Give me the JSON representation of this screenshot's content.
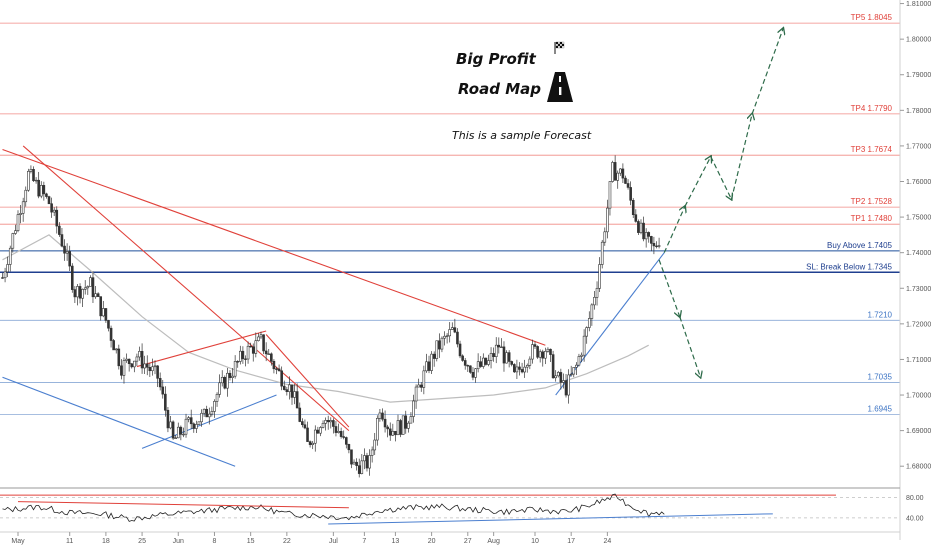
{
  "header": {
    "title_line1": "Big Profit",
    "title_line2": "Road Map",
    "subtitle": "This is a sample Forecast",
    "flag_icon": "checkered-flag-icon",
    "road_icon": "road-icon"
  },
  "colors": {
    "bull": "#26a69a",
    "bear": "#ef5350",
    "candle": "#333333",
    "tp_line": "#f08a84",
    "buy_line": "#1f4f9a",
    "sl_line": "#1f3f8f",
    "support_blue": "#8aa9d6",
    "ma": "#bdbdbd",
    "trend_red": "#e0413a",
    "trend_blue": "#4b7fcf",
    "arrow_green": "#2e6b4a",
    "axis_text": "#555555"
  },
  "chart_data": {
    "type": "candlestick",
    "title": "",
    "ylim": [
      1.675,
      1.811
    ],
    "y_ticks": [
      "1.81000",
      "1.80000",
      "1.79000",
      "1.78000",
      "1.77000",
      "1.76000",
      "1.75000",
      "1.74000",
      "1.73000",
      "1.72000",
      "1.71000",
      "1.70000",
      "1.69000",
      "1.68000"
    ],
    "y_tick_values": [
      1.81,
      1.8,
      1.79,
      1.78,
      1.77,
      1.76,
      1.75,
      1.74,
      1.73,
      1.72,
      1.71,
      1.7,
      1.69,
      1.68
    ],
    "x_ticks": [
      "May",
      "11",
      "18",
      "25",
      "Jun",
      "8",
      "15",
      "22",
      "Jul",
      "7",
      "13",
      "20",
      "27",
      "Aug",
      "10",
      "17",
      "24"
    ],
    "x_tick_days": [
      0,
      10,
      17,
      24,
      31,
      38,
      45,
      52,
      61,
      67,
      73,
      80,
      87,
      92,
      100,
      107,
      114
    ],
    "levels": [
      {
        "label": "TP5 1.8045",
        "value": 1.8045,
        "style": "tp"
      },
      {
        "label": "TP4 1.7790",
        "value": 1.779,
        "style": "tp"
      },
      {
        "label": "TP3 1.7674",
        "value": 1.7674,
        "style": "tp"
      },
      {
        "label": "TP2 1.7528",
        "value": 1.7528,
        "style": "tp"
      },
      {
        "label": "TP1 1.7480",
        "value": 1.748,
        "style": "tp"
      },
      {
        "label": "Buy Above 1.7405",
        "value": 1.7405,
        "style": "buy"
      },
      {
        "label": "SL: Break Below 1.7345",
        "value": 1.7345,
        "style": "sl"
      },
      {
        "label": "1.7210",
        "value": 1.721,
        "style": "support"
      },
      {
        "label": "1.7035",
        "value": 1.7035,
        "style": "support"
      },
      {
        "label": "1.6945",
        "value": 1.6945,
        "style": "support"
      }
    ],
    "price_path": [
      [
        -3,
        1.733
      ],
      [
        2,
        1.762
      ],
      [
        6,
        1.754
      ],
      [
        9,
        1.741
      ],
      [
        11,
        1.729
      ],
      [
        14,
        1.731
      ],
      [
        17,
        1.721
      ],
      [
        20,
        1.708
      ],
      [
        23,
        1.711
      ],
      [
        27,
        1.705
      ],
      [
        30,
        1.687
      ],
      [
        33,
        1.692
      ],
      [
        36,
        1.694
      ],
      [
        40,
        1.704
      ],
      [
        44,
        1.712
      ],
      [
        47,
        1.715
      ],
      [
        50,
        1.707
      ],
      [
        53,
        1.701
      ],
      [
        56,
        1.686
      ],
      [
        59,
        1.694
      ],
      [
        62,
        1.69
      ],
      [
        65,
        1.68
      ],
      [
        68,
        1.681
      ],
      [
        70,
        1.697
      ],
      [
        72,
        1.69
      ],
      [
        75,
        1.692
      ],
      [
        78,
        1.704
      ],
      [
        81,
        1.713
      ],
      [
        84,
        1.718
      ],
      [
        86,
        1.711
      ],
      [
        88,
        1.707
      ],
      [
        91,
        1.709
      ],
      [
        93,
        1.714
      ],
      [
        96,
        1.705
      ],
      [
        99,
        1.712
      ],
      [
        102,
        1.713
      ],
      [
        104,
        1.705
      ],
      [
        106,
        1.702
      ],
      [
        108,
        1.708
      ],
      [
        110,
        1.718
      ],
      [
        112,
        1.732
      ],
      [
        115,
        1.763
      ],
      [
        117,
        1.762
      ],
      [
        119,
        1.752
      ],
      [
        121,
        1.744
      ],
      [
        123,
        1.741
      ],
      [
        124,
        1.744
      ]
    ],
    "moving_average": [
      [
        -3,
        1.738
      ],
      [
        6,
        1.745
      ],
      [
        14,
        1.735
      ],
      [
        24,
        1.722
      ],
      [
        33,
        1.712
      ],
      [
        42,
        1.707
      ],
      [
        52,
        1.703
      ],
      [
        62,
        1.701
      ],
      [
        72,
        1.698
      ],
      [
        82,
        1.699
      ],
      [
        92,
        1.7
      ],
      [
        102,
        1.702
      ],
      [
        110,
        1.706
      ],
      [
        118,
        1.711
      ],
      [
        122,
        1.714
      ]
    ],
    "trendlines_red": [
      [
        [
          -3,
          1.769
        ],
        [
          102,
          1.714
        ]
      ],
      [
        [
          1,
          1.77
        ],
        [
          64,
          1.69
        ]
      ],
      [
        [
          48,
          1.717
        ],
        [
          64,
          1.691
        ]
      ],
      [
        [
          23,
          1.708
        ],
        [
          48,
          1.718
        ]
      ]
    ],
    "trendlines_blue": [
      [
        [
          -3,
          1.705
        ],
        [
          42,
          1.68
        ]
      ],
      [
        [
          24,
          1.685
        ],
        [
          50,
          1.7
        ]
      ],
      [
        [
          104,
          1.7
        ],
        [
          125,
          1.74
        ]
      ]
    ],
    "forecast_arrows": [
      [
        [
          125,
          1.74
        ],
        [
          129,
          1.753
        ]
      ],
      [
        [
          129,
          1.753
        ],
        [
          134,
          1.767
        ]
      ],
      [
        [
          134,
          1.767
        ],
        [
          138,
          1.755
        ]
      ],
      [
        [
          138,
          1.755
        ],
        [
          142,
          1.779
        ]
      ],
      [
        [
          142,
          1.779
        ],
        [
          148,
          1.803
        ]
      ],
      [
        [
          124,
          1.738
        ],
        [
          128,
          1.722
        ]
      ],
      [
        [
          128,
          1.722
        ],
        [
          132,
          1.705
        ]
      ]
    ],
    "indicator": {
      "ticks": [
        "80.00",
        "40.00"
      ],
      "tick_values": [
        80,
        40
      ],
      "ylim": [
        20,
        95
      ],
      "series_path": [
        [
          -3,
          55
        ],
        [
          4,
          62
        ],
        [
          10,
          50
        ],
        [
          16,
          48
        ],
        [
          22,
          38
        ],
        [
          28,
          46
        ],
        [
          34,
          52
        ],
        [
          40,
          58
        ],
        [
          46,
          62
        ],
        [
          52,
          48
        ],
        [
          58,
          45
        ],
        [
          64,
          40
        ],
        [
          70,
          55
        ],
        [
          76,
          60
        ],
        [
          82,
          62
        ],
        [
          88,
          56
        ],
        [
          94,
          52
        ],
        [
          100,
          56
        ],
        [
          106,
          52
        ],
        [
          110,
          62
        ],
        [
          114,
          78
        ],
        [
          116,
          82
        ],
        [
          118,
          66
        ],
        [
          122,
          48
        ],
        [
          125,
          52
        ]
      ],
      "line_red": [
        [
          0,
          72
        ],
        [
          64,
          60
        ]
      ],
      "line_blue": [
        [
          60,
          28
        ],
        [
          146,
          48
        ]
      ],
      "upper_line": 85
    }
  }
}
